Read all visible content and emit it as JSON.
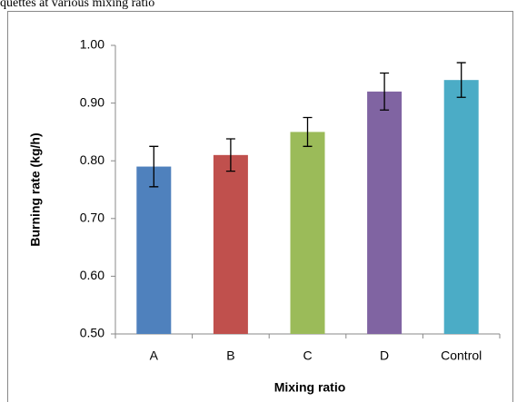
{
  "chart_data": {
    "type": "bar",
    "title": "quettes at various mixing ratio",
    "x_label": "Mixing ratio",
    "y_label": "Burning rate (kg/h)",
    "categories": [
      "A",
      "B",
      "C",
      "D",
      "Control"
    ],
    "values": [
      0.79,
      0.81,
      0.85,
      0.92,
      0.94
    ],
    "errors": [
      0.035,
      0.028,
      0.025,
      0.032,
      0.03
    ],
    "colors": [
      "#4f81bd",
      "#c0504d",
      "#9bbb59",
      "#8064a2",
      "#4bacc6"
    ],
    "ylim": [
      0.5,
      1.0
    ],
    "yticks": [
      {
        "value": 0.5,
        "label": "0.50"
      },
      {
        "value": 0.6,
        "label": "0.60"
      },
      {
        "value": 0.7,
        "label": "0.70"
      },
      {
        "value": 0.8,
        "label": "0.80"
      },
      {
        "value": 0.9,
        "label": "0.90"
      },
      {
        "value": 1.0,
        "label": "1.00"
      }
    ]
  }
}
